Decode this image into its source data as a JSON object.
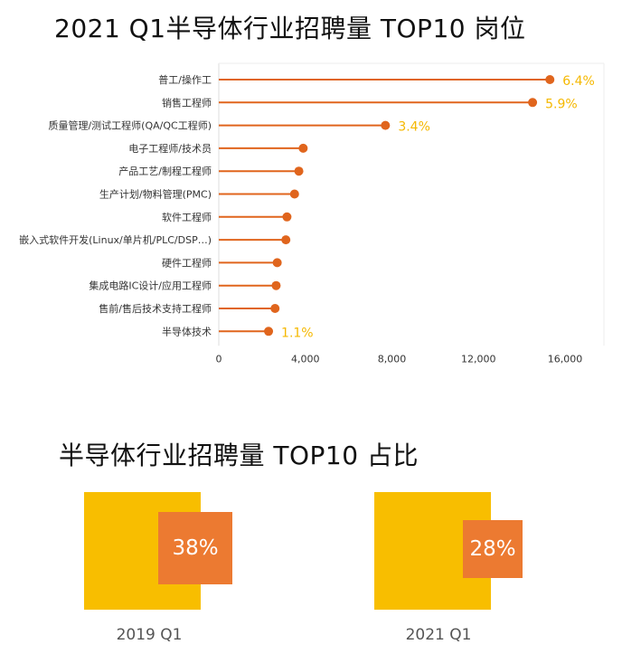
{
  "titles": {
    "top": "2021 Q1半导体行业招聘量 TOP10 岗位",
    "bottom": "半导体行业招聘量 TOP10 占比"
  },
  "colors": {
    "lollipop": "#e0651d",
    "annotation": "#f5b800",
    "gold": "#f8be00",
    "orange": "#ec7a31"
  },
  "chart_data": [
    {
      "type": "lollipop",
      "orientation": "horizontal",
      "title": "2021 Q1半导体行业招聘量 TOP10 岗位",
      "categories": [
        "普工/操作工",
        "销售工程师",
        "质量管理/测试工程师(QA/QC工程师)",
        "电子工程师/技术员",
        "产品工艺/制程工程师",
        "生产计划/物料管理(PMC)",
        "软件工程师",
        "嵌入式软件开发(Linux/单片机/PLC/DSP…)",
        "硬件工程师",
        "集成电路IC设计/应用工程师",
        "售前/售后技术支持工程师",
        "半导体技术"
      ],
      "values": [
        15300,
        14500,
        7700,
        3900,
        3700,
        3500,
        3150,
        3100,
        2700,
        2650,
        2600,
        2300
      ],
      "annotations": [
        {
          "category": "普工/操作工",
          "text": "6.4%"
        },
        {
          "category": "销售工程师",
          "text": "5.9%"
        },
        {
          "category": "质量管理/测试工程师(QA/QC工程师)",
          "text": "3.4%"
        },
        {
          "category": "半导体技术",
          "text": "1.1%"
        }
      ],
      "xlim": [
        0,
        17000
      ],
      "xticks": [
        "0",
        "4,000",
        "8,000",
        "12,000",
        "16,000"
      ],
      "xtick_values": [
        0,
        4000,
        8000,
        12000,
        16000
      ],
      "grid": false
    },
    {
      "type": "proportion-squares",
      "title": "半导体行业招聘量 TOP10 占比",
      "categories": [
        "2019 Q1",
        "2021 Q1"
      ],
      "values": [
        38,
        28
      ],
      "labels": [
        "38%",
        "28%"
      ]
    }
  ]
}
